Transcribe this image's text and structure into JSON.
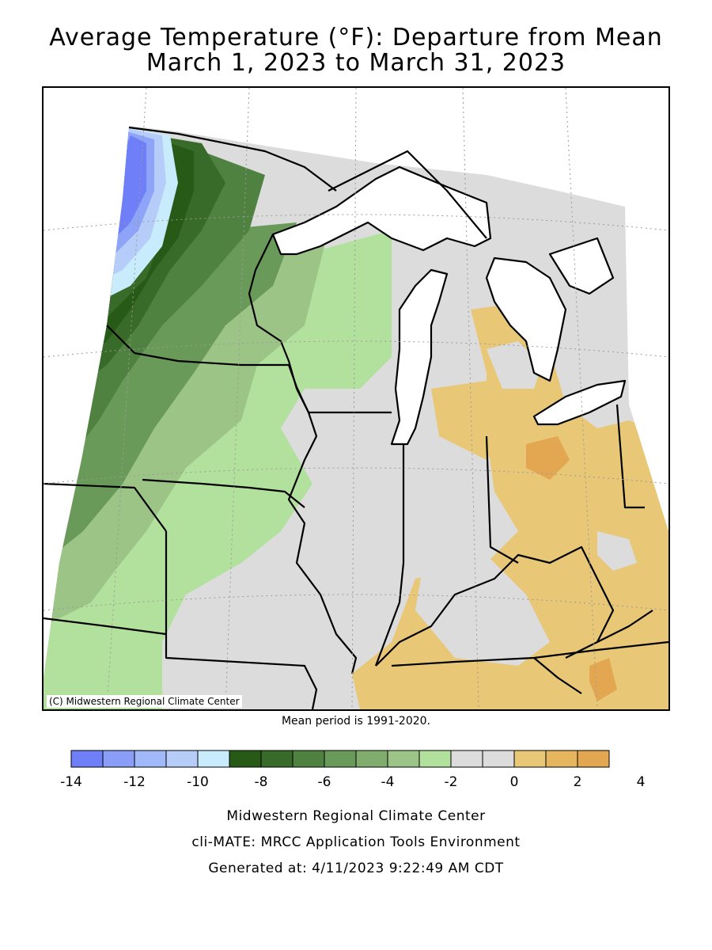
{
  "title": {
    "line1": "Average Temperature (°F): Departure from Mean",
    "line2": "March 1, 2023 to March 31, 2023"
  },
  "map": {
    "copyright": "(C) Midwestern Regional Climate Center",
    "region": "Midwest United States",
    "colors": {
      "blue_dark": "#6f7ff7",
      "blue_mid": "#8ea4f9",
      "blue_light": "#b6cdfa",
      "blue_pale": "#c9ecfd",
      "green_darkest": "#275a17",
      "green_dark": "#386b2a",
      "green_mid": "#4f8240",
      "green_med": "#6a9a5a",
      "green_light": "#9bc486",
      "green_pale": "#b2e19d",
      "gray": "#dcdcdc",
      "tan": "#e8c776",
      "orange": "#e3a752",
      "lake": "#ffffff",
      "border": "#000000"
    }
  },
  "mean_period": "Mean period is 1991-2020.",
  "legend": {
    "colors": [
      "#6f7ff7",
      "#8a9ef8",
      "#a1b8f9",
      "#b6cdfa",
      "#c9ecfd",
      "#275a17",
      "#386b2a",
      "#4f8240",
      "#6a9a5a",
      "#80ad6e",
      "#9bc486",
      "#b2e19d",
      "#dcdcdc",
      "#dcdcdc",
      "#e8c776",
      "#e6b65f",
      "#e3a752"
    ],
    "ticks": [
      "-14",
      "-12",
      "-10",
      "-8",
      "-6",
      "-4",
      "-2",
      "0",
      "2",
      "4"
    ]
  },
  "footer": {
    "line1": "Midwestern Regional Climate Center",
    "line2": "cli-MATE: MRCC Application Tools Environment",
    "line3": "Generated at: 4/11/2023 9:22:49 AM CDT"
  }
}
